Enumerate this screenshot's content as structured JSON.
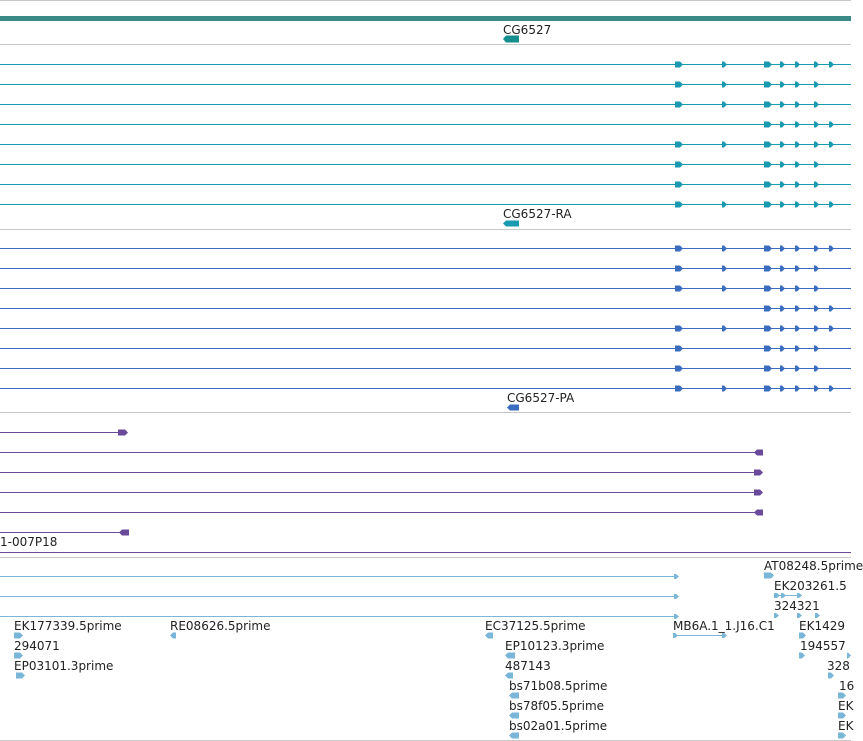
{
  "colors": {
    "teal_bar": "#3a8a87",
    "cg6527_gene": "#178e8e",
    "ra_transcripts": "#1a9ab0",
    "pa_transcripts": "#3a6cc0",
    "purple_tracks": "#6a4a9a",
    "light_blue": "#7ab6d8",
    "separator": "#c8c8c8"
  },
  "labels": {
    "gene": "CG6527",
    "transcript_ra": "CG6527-RA",
    "transcript_pa": "CG6527-PA",
    "purple_clone": "1-007P18",
    "est_at": "AT08248.5prime",
    "est_ek203261": "EK203261.5",
    "est_324321": "324321",
    "est_ek177339": "EK177339.5prime",
    "est_re08626": "RE08626.5prime",
    "est_ec37125": "EC37125.5prime",
    "est_mb6a": "MB6A.1_1.J16.C1",
    "est_ek1429": "EK1429",
    "est_294071": "294071",
    "est_ep10123": "EP10123.3prime",
    "est_194557": "194557",
    "est_ep03101": "EP03101.3prime",
    "est_487143": "487143",
    "est_328": "328",
    "est_bs71b08": "bs71b08.5prime",
    "est_16": "16",
    "est_bs78f05": "bs78f05.5prime",
    "est_ek_a": "EK",
    "est_bs02a01": "bs02a01.5prime",
    "est_ek_b": "EK"
  }
}
